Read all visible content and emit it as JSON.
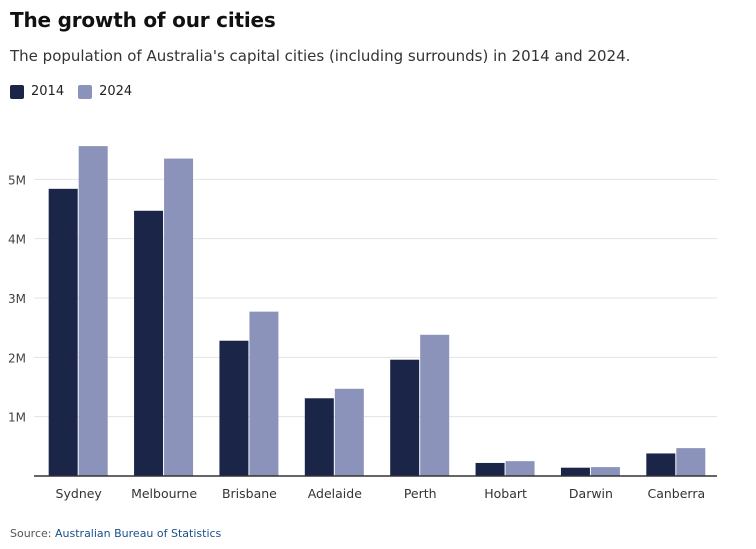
{
  "header": {
    "title": "The growth of our cities",
    "subtitle": "The population of Australia's capital cities (including surrounds) in 2014 and 2024."
  },
  "footer": {
    "source_label": "Source:",
    "source_name": "Australian Bureau of Statistics"
  },
  "colors": {
    "series_2014": "#1b2547",
    "series_2024": "#8b93bb",
    "grid": "#e3e3e3",
    "axis": "#333333"
  },
  "chart_data": {
    "type": "bar",
    "title": "The growth of our cities",
    "subtitle": "The population of Australia's capital cities (including surrounds) in 2014 and 2024.",
    "xlabel": "",
    "ylabel": "",
    "ylim": [
      0,
      6000000
    ],
    "yticks": [
      1000000,
      2000000,
      3000000,
      4000000,
      5000000
    ],
    "ytick_labels": [
      "1M",
      "2M",
      "3M",
      "4M",
      "5M"
    ],
    "grid": true,
    "legend_position": "top-left",
    "categories": [
      "Sydney",
      "Melbourne",
      "Brisbane",
      "Adelaide",
      "Perth",
      "Hobart",
      "Darwin",
      "Canberra"
    ],
    "series": [
      {
        "name": "2014",
        "values": [
          4840000,
          4470000,
          2280000,
          1310000,
          1960000,
          220000,
          140000,
          380000
        ]
      },
      {
        "name": "2024",
        "values": [
          5560000,
          5350000,
          2770000,
          1470000,
          2380000,
          250000,
          150000,
          470000
        ]
      }
    ]
  }
}
